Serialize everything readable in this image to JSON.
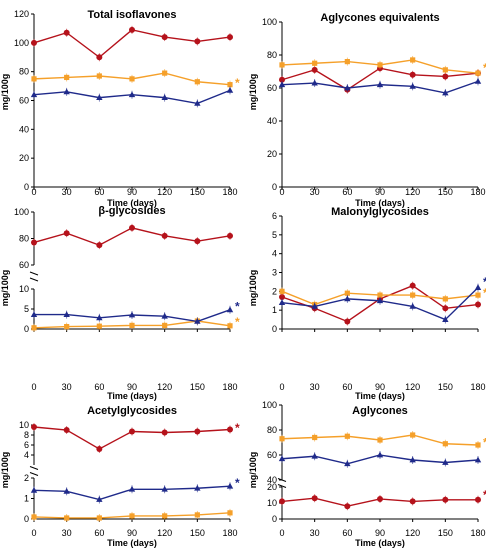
{
  "colors": {
    "red": "#b5121b",
    "orange": "#f5a02a",
    "blue": "#1f2a8a",
    "axis": "#000000"
  },
  "chart_data": [
    {
      "type": "line",
      "title": "Total isoflavones",
      "xlabel": "Time (days)",
      "ylabel": "mg/100g",
      "x": [
        0,
        30,
        60,
        90,
        120,
        150,
        180
      ],
      "xticks": [
        "0",
        "30",
        "60",
        "90",
        "120",
        "150",
        "180"
      ],
      "ylim": [
        0,
        120
      ],
      "yticks": [
        "0",
        "20",
        "40",
        "60",
        "80",
        "100",
        "120"
      ],
      "series": [
        {
          "color": "red",
          "marker": "circle",
          "values": [
            100,
            107,
            90,
            109,
            104,
            101,
            104
          ]
        },
        {
          "color": "orange",
          "marker": "square",
          "values": [
            75,
            76,
            77,
            75,
            79,
            73,
            71
          ]
        },
        {
          "color": "blue",
          "marker": "triangle",
          "values": [
            64,
            66,
            62,
            64,
            62,
            58,
            67
          ]
        }
      ],
      "annotations": [
        {
          "text": "*",
          "color": "orange",
          "x": 180,
          "y": 72
        }
      ]
    },
    {
      "type": "line",
      "title": "Aglycones equivalents",
      "xlabel": "Time (days)",
      "ylabel": "mg/100g",
      "x": [
        0,
        30,
        60,
        90,
        120,
        150,
        180
      ],
      "xticks": [
        "0",
        "30",
        "60",
        "90",
        "120",
        "150",
        "180"
      ],
      "ylim": [
        0,
        100
      ],
      "yticks": [
        "0",
        "20",
        "40",
        "60",
        "80",
        "100"
      ],
      "series": [
        {
          "color": "red",
          "marker": "circle",
          "values": [
            65,
            71,
            59,
            72,
            68,
            67,
            69
          ]
        },
        {
          "color": "orange",
          "marker": "square",
          "values": [
            74,
            75,
            76,
            74,
            77,
            71,
            69
          ]
        },
        {
          "color": "blue",
          "marker": "triangle",
          "values": [
            62,
            63,
            60,
            62,
            61,
            57,
            64
          ]
        }
      ],
      "annotations": [
        {
          "text": "*",
          "color": "orange",
          "x": 180,
          "y": 72
        }
      ]
    },
    {
      "type": "line",
      "title": "β-glycosides",
      "xlabel": "Time (days)",
      "ylabel": "mg/100g",
      "x": [
        0,
        30,
        60,
        90,
        120,
        150,
        180
      ],
      "xticks": [
        "0",
        "30",
        "60",
        "90",
        "120",
        "150",
        "180"
      ],
      "broken_axis": {
        "lower": [
          0,
          10
        ],
        "upper": [
          60,
          100
        ]
      },
      "yticks": [
        "0",
        "5",
        "10",
        "60",
        "80",
        "100"
      ],
      "series": [
        {
          "color": "red",
          "marker": "circle",
          "values": [
            77,
            84,
            75,
            88,
            82,
            78,
            82
          ]
        },
        {
          "color": "orange",
          "marker": "square",
          "values": [
            0.3,
            0.6,
            0.7,
            0.9,
            0.9,
            2.0,
            0.8
          ]
        },
        {
          "color": "blue",
          "marker": "triangle",
          "values": [
            3.6,
            3.6,
            2.8,
            3.5,
            3.2,
            1.9,
            4.8
          ]
        }
      ],
      "annotations": [
        {
          "text": "*",
          "color": "blue",
          "x": 180,
          "y": 5.6
        },
        {
          "text": "*",
          "color": "orange",
          "x": 180,
          "y": 1.8
        }
      ]
    },
    {
      "type": "line",
      "title": "Malonylglycosides",
      "xlabel": "Time (days)",
      "ylabel": "mg/100g",
      "x": [
        0,
        30,
        60,
        90,
        120,
        150,
        180
      ],
      "xticks": [
        "0",
        "30",
        "60",
        "90",
        "120",
        "150",
        "180"
      ],
      "ylim": [
        0,
        6
      ],
      "yticks": [
        "0",
        "1",
        "2",
        "3",
        "4",
        "5",
        "6"
      ],
      "series": [
        {
          "color": "red",
          "marker": "circle",
          "values": [
            1.7,
            1.1,
            0.4,
            1.6,
            2.3,
            1.1,
            1.3
          ]
        },
        {
          "color": "orange",
          "marker": "square",
          "values": [
            2.0,
            1.3,
            1.9,
            1.8,
            1.8,
            1.6,
            1.8
          ]
        },
        {
          "color": "blue",
          "marker": "triangle",
          "values": [
            1.4,
            1.2,
            1.6,
            1.5,
            1.2,
            0.5,
            2.2
          ]
        }
      ],
      "annotations": [
        {
          "text": "*",
          "color": "blue",
          "x": 180,
          "y": 2.5
        },
        {
          "text": "*",
          "color": "orange",
          "x": 180,
          "y": 1.9
        }
      ]
    },
    {
      "type": "line",
      "title": "Acetylglycosides",
      "xlabel": "Time (days)",
      "ylabel": "mg/100g",
      "x": [
        0,
        30,
        60,
        90,
        120,
        150,
        180
      ],
      "xticks": [
        "0",
        "30",
        "60",
        "90",
        "120",
        "150",
        "180"
      ],
      "broken_axis": {
        "lower": [
          0,
          2
        ],
        "upper": [
          2,
          10
        ]
      },
      "yticks": [
        "0",
        "1",
        "2",
        "4",
        "6",
        "8",
        "10"
      ],
      "series": [
        {
          "color": "red",
          "marker": "circle",
          "values": [
            9.6,
            9.0,
            5.2,
            8.7,
            8.5,
            8.7,
            9.1
          ]
        },
        {
          "color": "orange",
          "marker": "square",
          "values": [
            0.1,
            0.05,
            0.05,
            0.15,
            0.15,
            0.2,
            0.3
          ]
        },
        {
          "color": "blue",
          "marker": "triangle",
          "values": [
            1.4,
            1.35,
            0.95,
            1.45,
            1.45,
            1.5,
            1.6
          ]
        }
      ],
      "annotations": [
        {
          "text": "*",
          "color": "red",
          "x": 180,
          "y": 9.4
        },
        {
          "text": "*",
          "color": "blue",
          "x": 180,
          "y": 1.75
        }
      ]
    },
    {
      "type": "line",
      "title": "Aglycones",
      "xlabel": "Time (days)",
      "ylabel": "mg/100g",
      "x": [
        0,
        30,
        60,
        90,
        120,
        150,
        180
      ],
      "xticks": [
        "0",
        "30",
        "60",
        "90",
        "120",
        "150",
        "180"
      ],
      "broken_axis": {
        "lower": [
          0,
          20
        ],
        "upper": [
          40,
          100
        ]
      },
      "yticks": [
        "0",
        "10",
        "20",
        "40",
        "60",
        "80",
        "100"
      ],
      "series": [
        {
          "color": "red",
          "marker": "circle",
          "values": [
            11,
            13,
            8,
            12.5,
            11,
            12,
            12
          ]
        },
        {
          "color": "orange",
          "marker": "square",
          "values": [
            73,
            74,
            75,
            72,
            76,
            69,
            68
          ]
        },
        {
          "color": "blue",
          "marker": "triangle",
          "values": [
            57,
            59,
            53,
            60,
            56,
            54,
            56
          ]
        }
      ],
      "annotations": [
        {
          "text": "*",
          "color": "orange",
          "x": 180,
          "y": 70
        },
        {
          "text": "*",
          "color": "red",
          "x": 180,
          "y": 15
        }
      ]
    }
  ]
}
